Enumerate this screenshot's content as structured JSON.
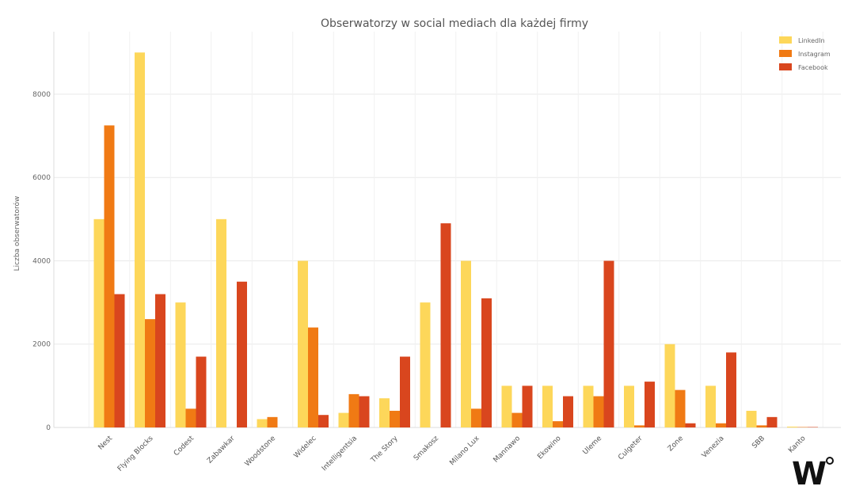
{
  "chart_data": {
    "type": "bar",
    "title": "Obserwatorzy w social mediach dla każdej firmy",
    "xlabel": "",
    "ylabel": "Liczba obserwatorów",
    "ylim": [
      0,
      9500
    ],
    "yticks": [
      0,
      2000,
      4000,
      6000,
      8000
    ],
    "grid": true,
    "legend_position": "top-right",
    "categories": [
      "Nest",
      "Flying Blocks",
      "Codest",
      "Zabawkar",
      "Woodstone",
      "Widelec",
      "Intelligentsia",
      "The Story",
      "Smakosz",
      "Milano Lux",
      "Mannawo",
      "Ekowino",
      "Uleme",
      "Culgeter",
      "Zone",
      "Venezia",
      "SBB",
      "Kanto"
    ],
    "series": [
      {
        "name": "LinkedIn",
        "color": "#FDD75A",
        "values": [
          5000,
          9000,
          3000,
          5000,
          200,
          4000,
          350,
          700,
          3000,
          4000,
          1000,
          1000,
          1000,
          1000,
          2000,
          1000,
          400,
          20
        ]
      },
      {
        "name": "Instagram",
        "color": "#F07A14",
        "values": [
          7250,
          2600,
          450,
          0,
          250,
          2400,
          800,
          400,
          0,
          450,
          350,
          150,
          750,
          50,
          900,
          100,
          50,
          10
        ]
      },
      {
        "name": "Facebook",
        "color": "#D9461E",
        "values": [
          3200,
          3200,
          1700,
          3500,
          0,
          300,
          750,
          1700,
          4900,
          3100,
          1000,
          750,
          4000,
          1100,
          100,
          1800,
          250,
          10
        ]
      }
    ]
  },
  "logo": {
    "text": "W"
  }
}
